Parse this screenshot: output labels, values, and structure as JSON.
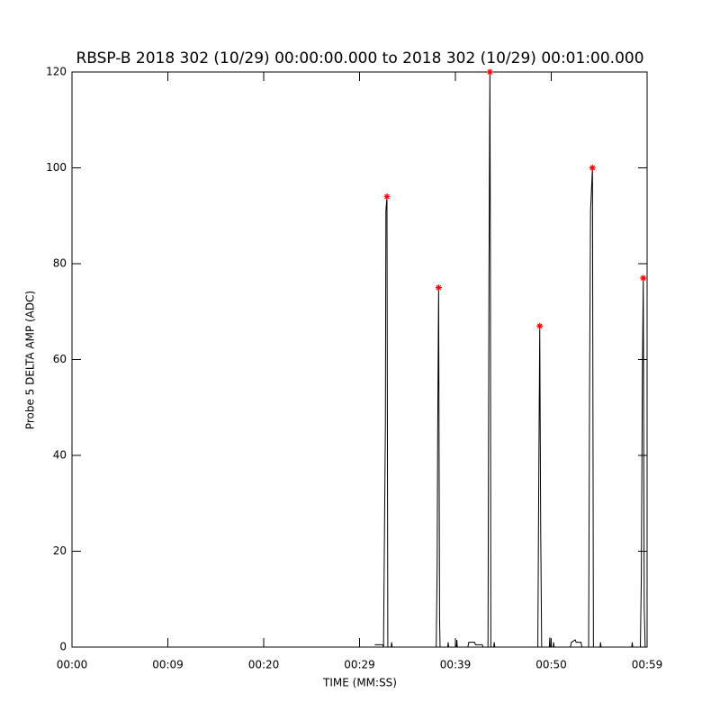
{
  "chart_data": {
    "type": "line",
    "title": "RBSP-B 2018 302 (10/29) 00:00:00.000 to 2018 302 (10/29) 00:01:00.000",
    "xlabel": "TIME (MM:SS)",
    "ylabel": "Probe 5 DELTA AMP (ADC)",
    "xlim": [
      0,
      60
    ],
    "xticks": [
      {
        "value": 0,
        "label": "00:00"
      },
      {
        "value": 10,
        "label": "00:09"
      },
      {
        "value": 20,
        "label": "00:20"
      },
      {
        "value": 30,
        "label": "00:29"
      },
      {
        "value": 40,
        "label": "00:39"
      },
      {
        "value": 50,
        "label": "00:50"
      },
      {
        "value": 60,
        "label": "00:59"
      }
    ],
    "ylim": [
      0,
      120
    ],
    "yticks": [
      0,
      20,
      40,
      60,
      80,
      100,
      120
    ],
    "series": [
      {
        "type": "line",
        "color": "#000000",
        "x": [
          31.6,
          32.4,
          32.5,
          32.7,
          32.75,
          32.86,
          32.95,
          33.3,
          33.35,
          33.4,
          38.0,
          38.1,
          38.15,
          38.25,
          38.35,
          38.4,
          39.2,
          39.25,
          39.3,
          40.1,
          40.15,
          40.2,
          41.3,
          41.4,
          42.0,
          42.1,
          42.8,
          42.9,
          43.4,
          43.5,
          43.6,
          43.65,
          43.7,
          44.0,
          44.05,
          44.1,
          48.6,
          48.7,
          48.8,
          48.9,
          49.0,
          49.8,
          49.85,
          49.9,
          50.2,
          50.25,
          50.3,
          52.0,
          52.1,
          52.5,
          52.6,
          53.1,
          53.2,
          53.9,
          54.0,
          54.1,
          54.3,
          54.4,
          55.1,
          55.15,
          55.2,
          58.4,
          58.45,
          58.5,
          59.3,
          59.4,
          59.5,
          59.6,
          59.7,
          59.8
        ],
        "values": [
          0.5,
          0.5,
          0,
          47,
          91,
          94,
          0,
          0,
          1,
          0,
          0,
          17,
          44,
          75,
          6,
          0,
          0,
          1,
          0,
          0,
          1.5,
          0,
          0,
          1,
          1,
          0.5,
          0.5,
          0,
          0,
          76,
          120,
          82,
          0,
          0,
          1,
          0,
          0,
          36,
          67,
          24,
          0,
          0,
          2,
          0,
          0,
          1,
          0,
          0,
          1,
          1.5,
          1,
          1,
          0,
          0,
          55,
          91,
          100,
          0,
          0,
          1,
          0,
          0,
          1,
          0,
          0,
          15,
          54,
          77,
          8,
          0
        ]
      },
      {
        "type": "scatter",
        "color": "#ff0000",
        "x": [
          32.86,
          38.25,
          43.6,
          48.8,
          54.3,
          59.6
        ],
        "values": [
          94,
          75,
          120,
          67,
          100,
          77
        ]
      }
    ]
  }
}
